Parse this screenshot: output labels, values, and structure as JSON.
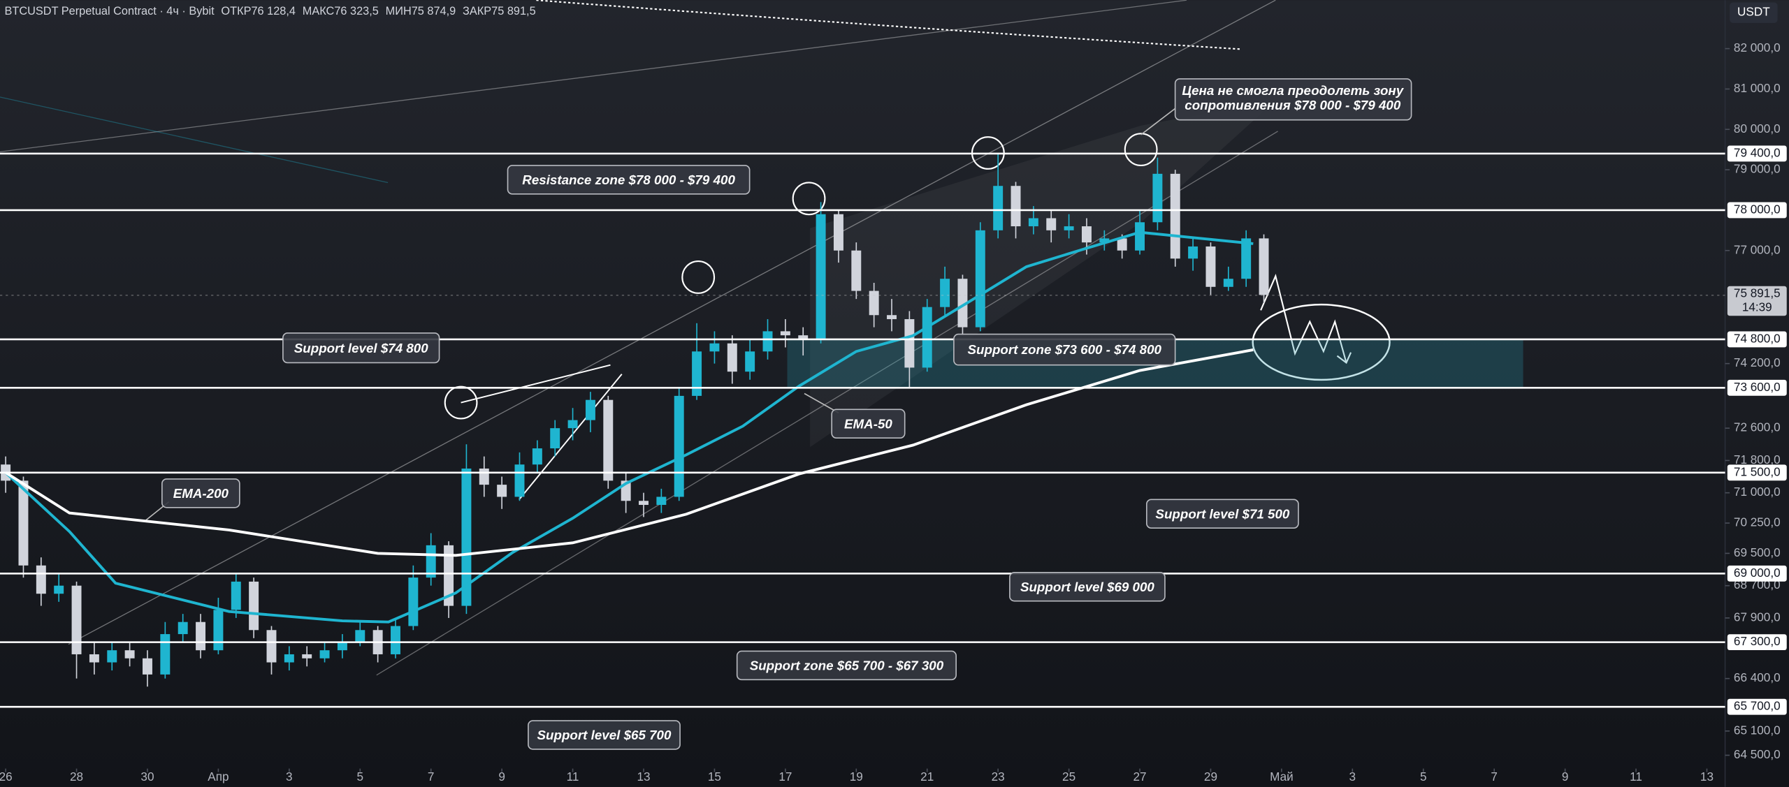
{
  "chart_data": {
    "type": "candlestick",
    "header": {
      "symbol": "BTCUSDT Perpetual Contract · 4ч · Bybit",
      "open_label": "ОТКР",
      "open": "76 128,4",
      "high_label": "МАКС",
      "high": "76 323,5",
      "low_label": "МИН",
      "low": "75 874,9",
      "close_label": "ЗАКР",
      "close": "75 891,5"
    },
    "currency": "USDT",
    "up_color": "#1fb5d0",
    "down_color": "#d1d4dc",
    "x": [
      0,
      0.5,
      1,
      1.5,
      2,
      2.5,
      3,
      3.5,
      4,
      4.5,
      5,
      5.5,
      6,
      6.5,
      7,
      7.5,
      8,
      8.5,
      9,
      9.5,
      10,
      10.5,
      11,
      11.5,
      12,
      12.5,
      13,
      13.5,
      14,
      14.5,
      15,
      15.5,
      16,
      16.5,
      17,
      17.5,
      18,
      18.5,
      19,
      19.5,
      20,
      20.5,
      21,
      21.5,
      22,
      22.5,
      23,
      23.5,
      24,
      24.5,
      25,
      25.5,
      26,
      26.5,
      27,
      27.5,
      28,
      28.5,
      29,
      29.5,
      30,
      30.5,
      31,
      31.5,
      32,
      32.5,
      33,
      33.5,
      34,
      34.5,
      35,
      35.5
    ],
    "open": [
      71700,
      71300,
      69200,
      68500,
      68700,
      67000,
      66800,
      67100,
      66900,
      66500,
      67500,
      67800,
      67100,
      68100,
      68800,
      67600,
      66800,
      67000,
      66900,
      67100,
      67300,
      67600,
      67000,
      67700,
      68900,
      69700,
      68200,
      71600,
      71200,
      70900,
      71700,
      72100,
      72600,
      72800,
      73300,
      71300,
      70800,
      70700,
      70900,
      73400,
      74500,
      74700,
      74000,
      74500,
      75000,
      74900,
      74800,
      77900,
      77000,
      76000,
      75400,
      75300,
      74100,
      75600,
      76300,
      75100,
      77500,
      78600,
      77600,
      77800,
      77500,
      77600,
      77200,
      77300,
      77000,
      77700,
      78900,
      76800,
      77100,
      76100,
      76300,
      77300
    ],
    "high": [
      71900,
      71400,
      69400,
      69000,
      68800,
      67300,
      67300,
      67300,
      67100,
      67800,
      68000,
      68000,
      68400,
      69000,
      68900,
      67700,
      67200,
      67200,
      67300,
      67500,
      67800,
      67700,
      67900,
      69200,
      70000,
      69800,
      72200,
      71900,
      71400,
      72000,
      72300,
      72800,
      73100,
      73500,
      73400,
      71500,
      71000,
      71100,
      73600,
      75200,
      75000,
      74900,
      74800,
      75300,
      75300,
      75100,
      78200,
      78000,
      77200,
      76200,
      75800,
      75500,
      75800,
      76600,
      76400,
      77700,
      79400,
      78700,
      78100,
      78000,
      77900,
      77800,
      77500,
      77400,
      78000,
      79300,
      79000,
      77300,
      77200,
      76600,
      77500,
      77400
    ],
    "low": [
      71000,
      68900,
      68200,
      68300,
      66400,
      66500,
      66600,
      66700,
      66200,
      66400,
      67300,
      66900,
      67000,
      67900,
      67400,
      66500,
      66600,
      66700,
      66800,
      66900,
      67200,
      66800,
      66900,
      67600,
      68700,
      67900,
      68000,
      70900,
      70600,
      70800,
      71500,
      71900,
      72300,
      72500,
      71100,
      70500,
      70400,
      70500,
      70800,
      73300,
      74200,
      73700,
      73800,
      74300,
      74600,
      74400,
      74700,
      76700,
      75800,
      75100,
      75000,
      73600,
      74000,
      75400,
      74900,
      75000,
      77300,
      77300,
      77400,
      77200,
      77300,
      76900,
      77000,
      76800,
      76900,
      77500,
      76600,
      76500,
      75900,
      76000,
      76100,
      75700
    ],
    "close": [
      71300,
      69200,
      68500,
      68700,
      67000,
      66800,
      67100,
      66900,
      66500,
      67500,
      67800,
      67100,
      68100,
      68800,
      67600,
      66800,
      67000,
      66900,
      67100,
      67300,
      67600,
      67000,
      67700,
      68900,
      69700,
      68200,
      71600,
      71200,
      70900,
      71700,
      72100,
      72600,
      72800,
      73300,
      71300,
      70800,
      70700,
      70900,
      73400,
      74500,
      74700,
      74000,
      74500,
      75000,
      74900,
      74800,
      77900,
      77000,
      76000,
      75400,
      75300,
      74100,
      75600,
      76300,
      75100,
      77500,
      78600,
      77600,
      77800,
      77500,
      77600,
      77200,
      77300,
      77000,
      77700,
      78900,
      76800,
      77100,
      76100,
      76300,
      77300,
      75900
    ],
    "series": [
      {
        "name": "EMA-50",
        "color": "#1fb5d0",
        "x": [
          0,
          1.8,
          3.1,
          6.3,
          9.5,
          10.8,
          12.7,
          14.3,
          16,
          17.5,
          19.2,
          20.8,
          22.4,
          24,
          25.6,
          27.2,
          28.8,
          30.4,
          32,
          33.6,
          35.2
        ],
        "values": [
          71500,
          70040,
          68760,
          68060,
          67830,
          67800,
          68520,
          69520,
          70370,
          71230,
          71940,
          72650,
          73650,
          74500,
          74890,
          75740,
          76600,
          77030,
          77450,
          77310,
          77170
        ]
      },
      {
        "name": "EMA-200",
        "color": "#ffffff",
        "x": [
          0,
          1.8,
          6.3,
          10.5,
          12.7,
          16,
          19.2,
          22.4,
          25.6,
          28.8,
          32,
          35.2
        ],
        "values": [
          71500,
          70500,
          70080,
          69500,
          69450,
          69760,
          70470,
          71470,
          72180,
          73180,
          74030,
          74540
        ]
      }
    ],
    "xlim": [
      -0.16,
      48.45
    ],
    "ylim": [
      64000,
      83200
    ],
    "xticks": [
      {
        "value": 0,
        "label": "26"
      },
      {
        "value": 2,
        "label": "28"
      },
      {
        "value": 4,
        "label": "30"
      },
      {
        "value": 6,
        "label": "Апр"
      },
      {
        "value": 8,
        "label": "3"
      },
      {
        "value": 10,
        "label": "5"
      },
      {
        "value": 12,
        "label": "7"
      },
      {
        "value": 14,
        "label": "9"
      },
      {
        "value": 16,
        "label": "11"
      },
      {
        "value": 18,
        "label": "13"
      },
      {
        "value": 20,
        "label": "15"
      },
      {
        "value": 22,
        "label": "17"
      },
      {
        "value": 24,
        "label": "19"
      },
      {
        "value": 26,
        "label": "21"
      },
      {
        "value": 28,
        "label": "23"
      },
      {
        "value": 30,
        "label": "25"
      },
      {
        "value": 32,
        "label": "27"
      },
      {
        "value": 34,
        "label": "29"
      },
      {
        "value": 36,
        "label": "Май"
      },
      {
        "value": 38,
        "label": "3"
      },
      {
        "value": 40,
        "label": "5"
      },
      {
        "value": 42,
        "label": "7"
      },
      {
        "value": 44,
        "label": "9"
      },
      {
        "value": 46,
        "label": "11"
      },
      {
        "value": 48,
        "label": "13"
      }
    ],
    "yticks": [
      {
        "value": 64500,
        "label": "64 500,0"
      },
      {
        "value": 65100,
        "label": "65 100,0"
      },
      {
        "value": 66400,
        "label": "66 400,0"
      },
      {
        "value": 67900,
        "label": "67 900,0"
      },
      {
        "value": 68700,
        "label": "68 700,0"
      },
      {
        "value": 69500,
        "label": "69 500,0"
      },
      {
        "value": 70250,
        "label": "70 250,0"
      },
      {
        "value": 71000,
        "label": "71 000,0"
      },
      {
        "value": 71800,
        "label": "71 800,0"
      },
      {
        "value": 72600,
        "label": "72 600,0"
      },
      {
        "value": 74200,
        "label": "74 200,0"
      },
      {
        "value": 77000,
        "label": "77 000,0"
      },
      {
        "value": 79000,
        "label": "79 000,0"
      },
      {
        "value": 80000,
        "label": "80 000,0"
      },
      {
        "value": 81000,
        "label": "81 000,0"
      },
      {
        "value": 82000,
        "label": "82 000,0"
      }
    ],
    "levels": [
      {
        "value": 79400,
        "label": "79 400,0"
      },
      {
        "value": 78000,
        "label": "78 000,0"
      },
      {
        "value": 74800,
        "label": "74 800,0"
      },
      {
        "value": 73600,
        "label": "73 600,0"
      },
      {
        "value": 71500,
        "label": "71 500,0"
      },
      {
        "value": 69000,
        "label": "69 000,0"
      },
      {
        "value": 67300,
        "label": "67 300,0"
      },
      {
        "value": 65700,
        "label": "65 700,0"
      }
    ],
    "support_zone": [
      73600,
      74800
    ],
    "last_price": {
      "value": 75891.5,
      "label": "75 891,5",
      "countdown": "14:39"
    },
    "annotations": [
      "Resistance zone  $78 000 - $79 400",
      "Support level $74 800",
      "Support zone $73 600 - $74 800",
      "Support level $71 500",
      "Support level $69 000",
      "Support zone $65 700 - $67 300",
      "Support level $65 700"
    ],
    "note": [
      "Цена не смогла преодолеть зону",
      "сопротивления $78 000 - $79 400"
    ]
  }
}
